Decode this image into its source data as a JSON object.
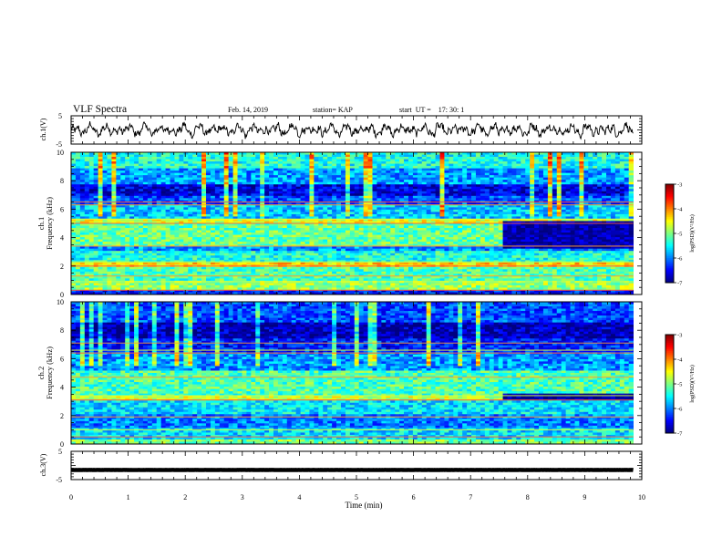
{
  "header": {
    "title": "VLF Spectra",
    "date": "Feb. 14, 2019",
    "station": "station= KAP",
    "start_time": "start  UT =    17: 30: 1"
  },
  "chart_data": [
    {
      "id": "ch1-waveform",
      "type": "line",
      "ylabel": "ch.1(V)",
      "ylim": [
        -5,
        5
      ],
      "yticks": [
        "5",
        "-5"
      ],
      "xlim": [
        0,
        10
      ],
      "x_end": 9.85,
      "color": "#000000",
      "signal": {
        "baseline": 0,
        "amplitude": 3.2
      }
    },
    {
      "id": "ch1-spectrogram",
      "type": "heatmap",
      "ylabel": "ch.1",
      "ylabel2": "Frequency (kHz)",
      "ylim": [
        0,
        10
      ],
      "yticks": [
        "0",
        "2",
        "4",
        "6",
        "8",
        "10"
      ],
      "xlim": [
        0,
        10
      ],
      "x_end": 9.85,
      "colorbar": {
        "label": "log(PSD)(V²/Hz)",
        "range": [
          -7,
          -3
        ],
        "ticks": [
          "-3",
          "-4",
          "-5",
          "-6",
          "-7"
        ]
      },
      "bands": [
        {
          "from": 0,
          "to": 0.3,
          "level": -6.4
        },
        {
          "from": 0.3,
          "to": 1.0,
          "level": -4.9
        },
        {
          "from": 1.0,
          "to": 2.0,
          "level": -5.2
        },
        {
          "from": 2.0,
          "to": 2.3,
          "level": -4.4
        },
        {
          "from": 2.3,
          "to": 3.0,
          "level": -5.4
        },
        {
          "from": 3.0,
          "to": 3.4,
          "level": -5.9
        },
        {
          "from": 3.4,
          "to": 5.0,
          "level": -5.1
        },
        {
          "from": 5.0,
          "to": 5.3,
          "level": -4.6
        },
        {
          "from": 5.3,
          "to": 6.3,
          "level": -5.7
        },
        {
          "from": 6.3,
          "to": 7.0,
          "level": -6.2
        },
        {
          "from": 7.0,
          "to": 7.8,
          "level": -6.6
        },
        {
          "from": 7.8,
          "to": 8.8,
          "level": -5.9
        },
        {
          "from": 8.8,
          "to": 10.0,
          "level": -5.4
        }
      ],
      "lines_khz": [
        0.3,
        0.9,
        1.3,
        2.0,
        2.3,
        3.4,
        5.0,
        5.3,
        6.3,
        6.5
      ],
      "late_shift": {
        "from_min": 7.6,
        "low_khz": 3.3,
        "high_khz": 5.2,
        "level": -6.8
      }
    },
    {
      "id": "ch2-spectrogram",
      "type": "heatmap",
      "ylabel": "ch.2",
      "ylabel2": "Frequency (kHz)",
      "ylim": [
        0,
        10
      ],
      "yticks": [
        "0",
        "2",
        "4",
        "6",
        "8",
        "10"
      ],
      "xlim": [
        0,
        10
      ],
      "x_end": 9.85,
      "colorbar": {
        "label": "log(PSD)(V²/Hz)",
        "range": [
          -7,
          -3
        ],
        "ticks": [
          "-3",
          "-4",
          "-5",
          "-6",
          "-7"
        ]
      },
      "bands": [
        {
          "from": 0,
          "to": 0.3,
          "level": -5.0
        },
        {
          "from": 0.3,
          "to": 1.2,
          "level": -5.6
        },
        {
          "from": 1.2,
          "to": 2.1,
          "level": -6.0
        },
        {
          "from": 2.1,
          "to": 3.0,
          "level": -5.6
        },
        {
          "from": 3.0,
          "to": 3.4,
          "level": -4.7
        },
        {
          "from": 3.4,
          "to": 5.2,
          "level": -5.2
        },
        {
          "from": 5.2,
          "to": 6.4,
          "level": -5.9
        },
        {
          "from": 6.4,
          "to": 7.4,
          "level": -6.4
        },
        {
          "from": 7.4,
          "to": 8.6,
          "level": -6.8
        },
        {
          "from": 8.6,
          "to": 10.0,
          "level": -6.2
        }
      ],
      "lines_khz": [
        0.5,
        1.0,
        1.9,
        3.1,
        3.4,
        4.7,
        6.4,
        6.6,
        7.1
      ],
      "late_shift": {
        "from_min": 7.6,
        "low_khz": 3.0,
        "high_khz": 3.6,
        "level": -6.9
      }
    },
    {
      "id": "ch3-waveform",
      "type": "line",
      "ylabel": "ch.3(V)",
      "ylim": [
        -5,
        5
      ],
      "yticks": [
        "5",
        "-5"
      ],
      "xlim": [
        0,
        10
      ],
      "x_end": 9.85,
      "color": "#000000",
      "signal": {
        "baseline": -1.6,
        "amplitude": 0.05
      },
      "xlabel": "Time (min)",
      "xticks": [
        "0",
        "1",
        "2",
        "3",
        "4",
        "5",
        "6",
        "7",
        "8",
        "9",
        "10"
      ]
    }
  ]
}
